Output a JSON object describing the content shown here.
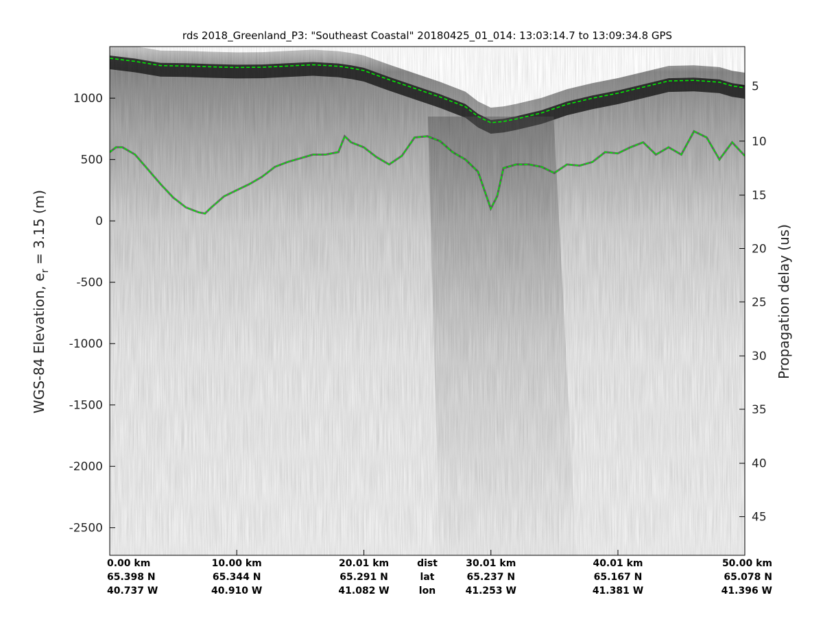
{
  "chart_data": {
    "type": "radargram",
    "title": "rds 2018_Greenland_P3: \"Southeast Coastal\"  20180425_01_014: 13:03:14.7 to 13:09:34.8 GPS",
    "ylabel": "WGS-84 Elevation, e",
    "ylabel_sub": "r",
    "ylabel_suffix": " = 3.15 (m)",
    "y2label": "Propagation delay (us)",
    "xlim": [
      0,
      50
    ],
    "ylim": [
      -2725,
      1420
    ],
    "yticks": [
      1000,
      500,
      0,
      -500,
      -1000,
      -1500,
      -2000,
      -2500
    ],
    "ytick_labels": [
      "1000",
      "500",
      "0",
      "-500",
      "-1000",
      "-1500",
      "-2000",
      "-2500"
    ],
    "y2ticks": [
      {
        "label": "5",
        "elev": 1100
      },
      {
        "label": "10",
        "elev": 650
      },
      {
        "label": "15",
        "elev": 210
      },
      {
        "label": "20",
        "elev": -225
      },
      {
        "label": "25",
        "elev": -660
      },
      {
        "label": "30",
        "elev": -1100
      },
      {
        "label": "35",
        "elev": -1535
      },
      {
        "label": "40",
        "elev": -1975
      },
      {
        "label": "45",
        "elev": -2410
      }
    ],
    "bottom_rows": [
      {
        "x": 0.0,
        "dist": "0.00 km",
        "lat": "65.398 N",
        "lon": "40.737 W"
      },
      {
        "x": 10.0,
        "dist": "10.00 km",
        "lat": "65.344 N",
        "lon": "40.910 W"
      },
      {
        "x": 20.01,
        "dist": "20.01 km",
        "lat": "65.291 N",
        "lon": "41.082 W"
      },
      {
        "x": 30.01,
        "dist": "30.01 km",
        "lat": "65.237 N",
        "lon": "41.253 W"
      },
      {
        "x": 40.01,
        "dist": "40.01 km",
        "lat": "65.167 N",
        "lon": "41.381 W"
      },
      {
        "x": 50.0,
        "dist": "50.00 km",
        "lat": "65.078 N",
        "lon": "41.396 W"
      }
    ],
    "row_labels": {
      "dist": "dist",
      "lat": "lat",
      "lon": "lon"
    },
    "surface": {
      "x": [
        0,
        2,
        4,
        6,
        8,
        10,
        12,
        14,
        16,
        18,
        19,
        20,
        22,
        24,
        26,
        28,
        29,
        30,
        31,
        32,
        34,
        36,
        38,
        40,
        42,
        44,
        46,
        48,
        49,
        50
      ],
      "y": [
        1325,
        1300,
        1265,
        1262,
        1255,
        1250,
        1252,
        1262,
        1272,
        1260,
        1245,
        1225,
        1150,
        1080,
        1010,
        930,
        850,
        800,
        810,
        830,
        880,
        950,
        1000,
        1040,
        1090,
        1140,
        1145,
        1130,
        1100,
        1085
      ]
    },
    "bed": {
      "x": [
        0,
        0.5,
        1,
        2,
        3,
        4,
        5,
        6,
        7,
        7.5,
        8,
        9,
        10,
        11,
        12,
        13,
        14,
        15,
        16,
        17,
        18,
        18.5,
        19,
        20,
        21,
        22,
        23,
        24,
        25,
        26,
        27,
        28,
        29,
        29.5,
        30,
        30.5,
        31,
        32,
        33,
        34,
        35,
        36,
        37,
        38,
        39,
        40,
        41,
        42,
        43,
        44,
        45,
        46,
        47,
        48,
        49,
        50
      ],
      "y": [
        560,
        600,
        600,
        540,
        420,
        300,
        190,
        110,
        70,
        60,
        110,
        200,
        250,
        300,
        360,
        440,
        480,
        510,
        540,
        540,
        560,
        690,
        640,
        600,
        520,
        460,
        530,
        680,
        690,
        650,
        560,
        500,
        400,
        250,
        100,
        200,
        430,
        460,
        460,
        440,
        390,
        460,
        450,
        480,
        560,
        550,
        600,
        640,
        540,
        600,
        540,
        730,
        680,
        500,
        640,
        530
      ]
    }
  },
  "colors": {
    "pick_line": "#00ee00",
    "axis": "#000000"
  }
}
